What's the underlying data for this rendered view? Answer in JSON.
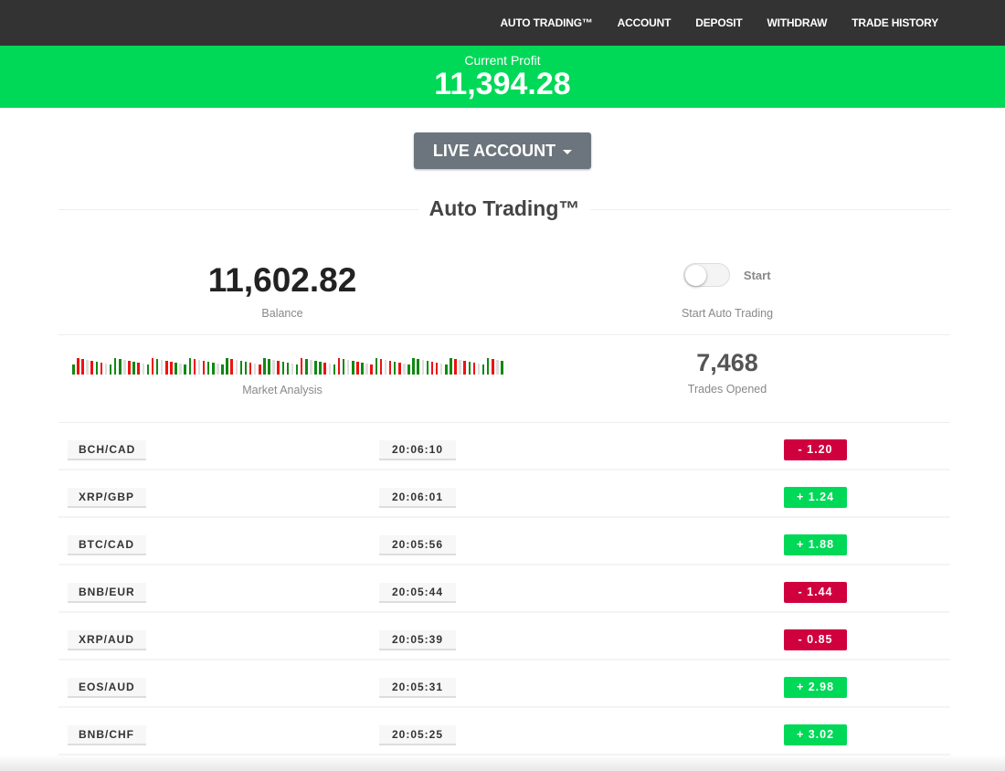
{
  "nav": {
    "items": [
      "AUTO TRADING™",
      "ACCOUNT",
      "DEPOSIT",
      "WITHDRAW",
      "TRADE HISTORY"
    ]
  },
  "profit": {
    "label": "Current Profit",
    "value": "11,394.28"
  },
  "account_button": {
    "label": "LIVE ACCOUNT"
  },
  "section_title": "Auto Trading™",
  "balance": {
    "value": "11,602.82",
    "label": "Balance"
  },
  "auto_trading": {
    "toggle_label": "Start",
    "toggle_on": false,
    "caption": "Start Auto Trading"
  },
  "market_analysis": {
    "label": "Market Analysis",
    "bar_colors": "grrgrgrrgggrrgrggrgrrrgrggrrrgggggrrggrgrgggrggggrggggrggrgrgrgrrgrgrgrggggrgrrrggrgrgrgggrgg"
  },
  "trades_opened": {
    "value": "7,468",
    "label": "Trades Opened"
  },
  "colors": {
    "positive": "#00d857",
    "negative": "#d0003f",
    "nav": "#333333"
  },
  "trades": [
    {
      "pair": "BCH/CAD",
      "time": "20:06:10",
      "change": "-  1.20",
      "direction": "down"
    },
    {
      "pair": "XRP/GBP",
      "time": "20:06:01",
      "change": "+  1.24",
      "direction": "up"
    },
    {
      "pair": "BTC/CAD",
      "time": "20:05:56",
      "change": "+  1.88",
      "direction": "up"
    },
    {
      "pair": "BNB/EUR",
      "time": "20:05:44",
      "change": "-  1.44",
      "direction": "down"
    },
    {
      "pair": "XRP/AUD",
      "time": "20:05:39",
      "change": "-  0.85",
      "direction": "down"
    },
    {
      "pair": "EOS/AUD",
      "time": "20:05:31",
      "change": "+  2.98",
      "direction": "up"
    },
    {
      "pair": "BNB/CHF",
      "time": "20:05:25",
      "change": "+  3.02",
      "direction": "up"
    }
  ]
}
